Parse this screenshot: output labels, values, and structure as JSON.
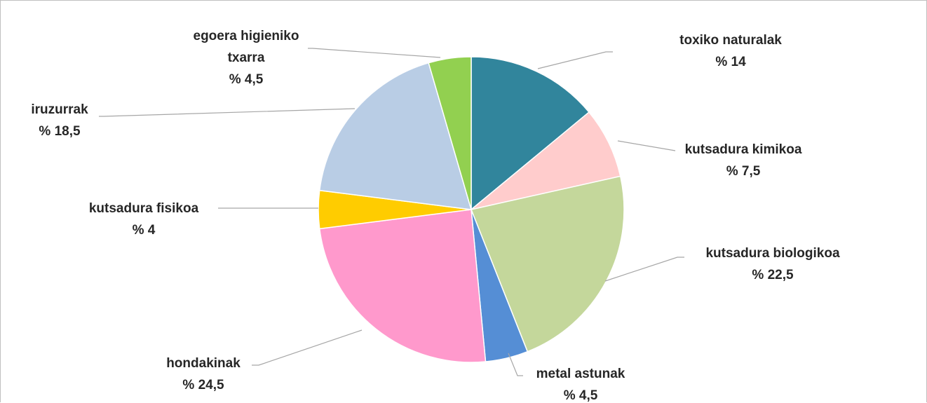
{
  "chart_data": {
    "type": "pie",
    "title": "",
    "start": "12 o'clock, clockwise",
    "slices": [
      {
        "label": "toxiko naturalak",
        "value_text": "% 14",
        "value": 14,
        "color": "#31859c"
      },
      {
        "label": "kutsadura kimikoa",
        "value_text": "% 7,5",
        "value": 7.5,
        "color": "#ffcccc"
      },
      {
        "label": "kutsadura biologikoa",
        "value_text": "% 22,5",
        "value": 22.5,
        "color": "#c4d79b"
      },
      {
        "label": "metal astunak",
        "value_text": "% 4,5",
        "value": 4.5,
        "color": "#558ed5"
      },
      {
        "label": "hondakinak",
        "value_text": "% 24,5",
        "value": 24.5,
        "color": "#ff99cc"
      },
      {
        "label": "kutsadura fisikoa",
        "value_text": "% 4",
        "value": 4,
        "color": "#ffcc00"
      },
      {
        "label": "iruzurrak",
        "value_text": "% 18,5",
        "value": 18.5,
        "color": "#b9cde5"
      },
      {
        "label": "egoera higieniko txarra",
        "value_text": "% 4,5",
        "value": 4.5,
        "color": "#92d050"
      }
    ]
  }
}
